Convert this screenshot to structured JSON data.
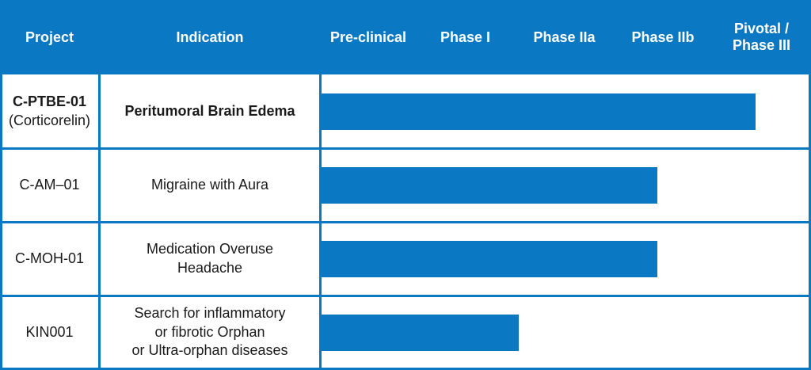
{
  "colors": {
    "accent": "#0a78c2",
    "text": "#1a1a1a",
    "background": "#ffffff"
  },
  "header": {
    "project": "Project",
    "indication": "Indication",
    "phases": [
      "Pre-clinical",
      "Phase I",
      "Phase IIa",
      "Phase IIb",
      "Pivotal /\nPhase III"
    ]
  },
  "chart_data": {
    "type": "bar",
    "orientation": "horizontal",
    "stages": [
      "Pre-clinical",
      "Phase I",
      "Phase IIa",
      "Phase IIb",
      "Pivotal / Phase III"
    ],
    "rows": [
      {
        "project": "C-PTBE-01",
        "project_sub": "(Corticorelin)",
        "indication": "Peritumoral Brain Edema",
        "progress": 4.4,
        "bold": true
      },
      {
        "project": "C-AM–01",
        "project_sub": "",
        "indication": "Migraine with Aura",
        "progress": 3.4,
        "bold": false
      },
      {
        "project": "C-MOH-01",
        "project_sub": "",
        "indication": "Medication Overuse\nHeadache",
        "progress": 3.4,
        "bold": false
      },
      {
        "project": "KIN001",
        "project_sub": "",
        "indication": "Search for inflammatory\nor fibrotic Orphan\nor Ultra-orphan diseases",
        "progress": 2.0,
        "bold": false
      }
    ]
  }
}
